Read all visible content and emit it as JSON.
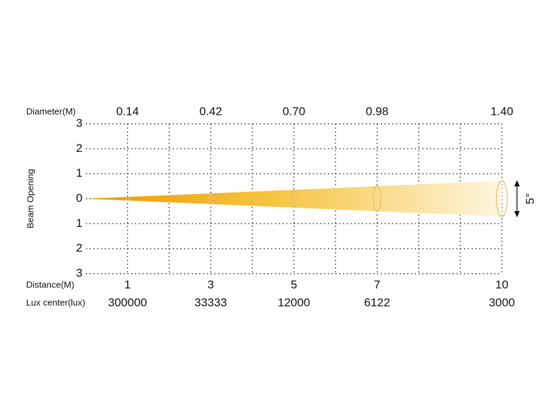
{
  "labels": {
    "diameter": "Diameter(M)",
    "distance": "Distance(M)",
    "lux": "Lux center(lux)",
    "beam_opening": "Beam Opening",
    "angle": "5°"
  },
  "y_ticks": [
    "3",
    "2",
    "1",
    "0",
    "1",
    "2",
    "3"
  ],
  "columns": [
    {
      "distance": 1,
      "diameter": "0.14",
      "lux": 300000
    },
    {
      "distance": 3,
      "diameter": "0.42",
      "lux": 33333
    },
    {
      "distance": 5,
      "diameter": "0.70",
      "lux": 12000
    },
    {
      "distance": 7,
      "diameter": "0.98",
      "lux": 6122
    },
    {
      "distance": 10,
      "diameter": "1.40",
      "lux": 3000
    }
  ]
}
